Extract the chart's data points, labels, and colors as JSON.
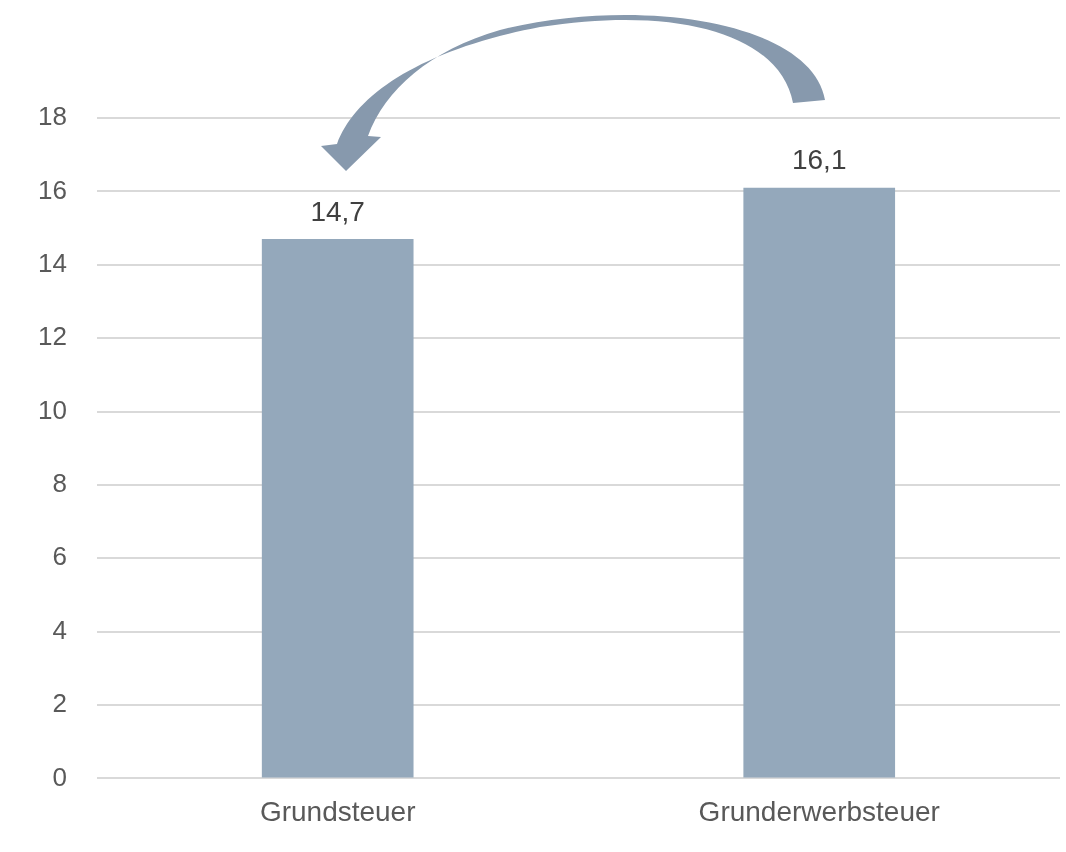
{
  "chart_data": {
    "type": "bar",
    "categories": [
      "Grundsteuer",
      "Grunderwerbsteuer"
    ],
    "values": [
      14.7,
      16.1
    ],
    "value_labels": [
      "14,7",
      "16,1"
    ],
    "color": "#94a8bb",
    "ylim": [
      0,
      18
    ],
    "yticks": [
      0,
      2,
      4,
      6,
      8,
      10,
      12,
      14,
      16,
      18
    ],
    "grid": "y",
    "legend": false
  }
}
